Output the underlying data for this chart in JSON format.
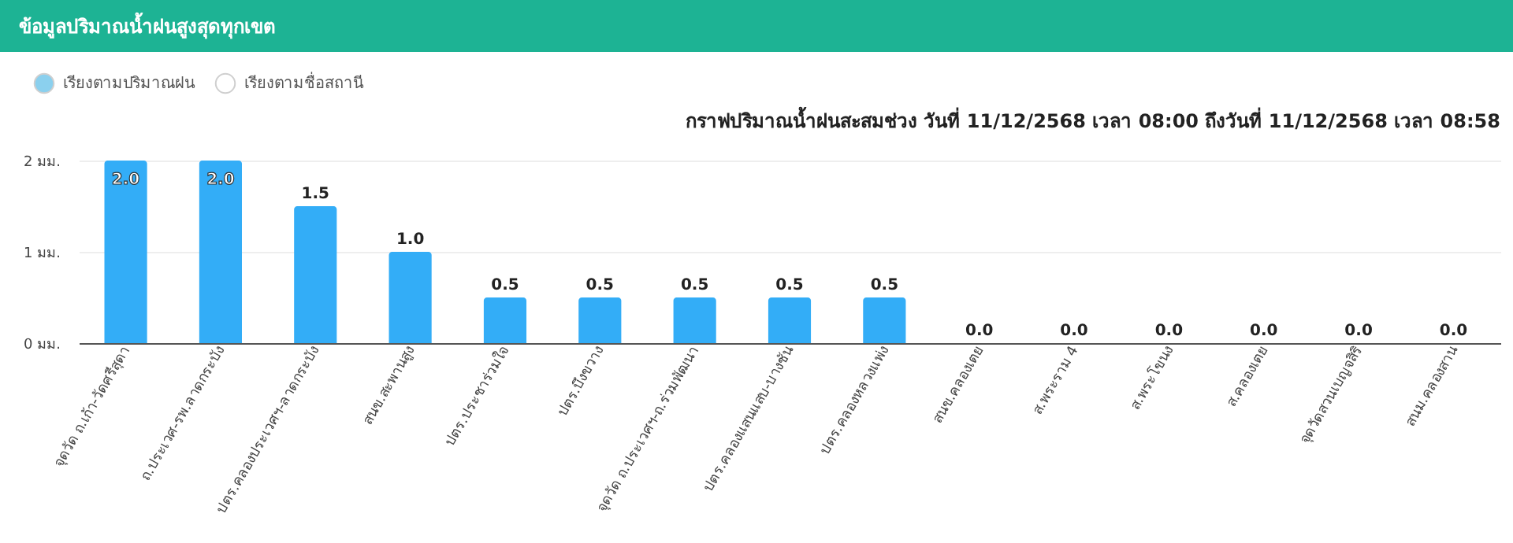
{
  "chart_data": {
    "type": "bar",
    "title": "ข้อมูลปริมาณน้ำฝนสูงสุดทุกเขต",
    "subtitle": "กราฟปริมาณน้ำฝนสะสมช่วง วันที่ 11/12/2568 เวลา 08:00 ถึงวันที่ 11/12/2568 เวลา 08:58",
    "annotations": [
      "เรียงตามปริมาณฝน",
      "เรียงตามชื่อสถานี"
    ],
    "categories": [
      "จุดวัด ถ.เก้า-วัดศรีสุดา",
      "ถ.ประเวศ-รพ.ลาดกระบัง",
      "ปตร.คลองประเวศฯ-ลาดกระบัง",
      "สนข.สะพานสูง",
      "ปตร.ประชาร่วมใจ",
      "ปตร.บึงขวาง",
      "จุดวัด ถ.ประเวศฯ-ถ.ร่วมพัฒนา",
      "ปตร.คลองแสนแสบ-บางชัน",
      "ปตร.คลองหลวงแพ่ง",
      "สนข.คลองเตย",
      "ส.พระราม 4",
      "ส.พระโขนง",
      "ส.คลองเตย",
      "จุดวัดสวนเบญจสิริ",
      "สนม.คลองสาน"
    ],
    "values": [
      2.0,
      2.0,
      1.5,
      1.0,
      0.5,
      0.5,
      0.5,
      0.5,
      0.5,
      0.0,
      0.0,
      0.0,
      0.0,
      0.0,
      0.0
    ],
    "value_labels": [
      "2.0",
      "2.0",
      "1.5",
      "1.0",
      "0.5",
      "0.5",
      "0.5",
      "0.5",
      "0.5",
      "0.0",
      "0.0",
      "0.0",
      "0.0",
      "0.0",
      "0.0"
    ],
    "color": "#33adf7",
    "ylim": [
      0,
      2
    ],
    "yticks": [
      {
        "value": 0,
        "label": "0 มม."
      },
      {
        "value": 1,
        "label": "1 มม."
      },
      {
        "value": 2,
        "label": "2 มม."
      }
    ],
    "grid": "y"
  }
}
